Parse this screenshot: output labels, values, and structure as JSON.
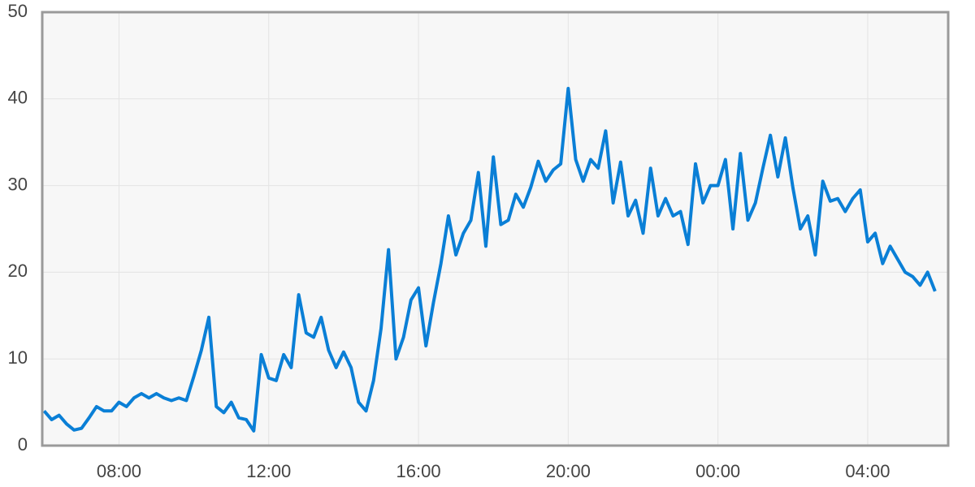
{
  "chart_data": {
    "type": "line",
    "x": [
      6.0,
      6.2,
      6.4,
      6.6,
      6.8,
      7.0,
      7.2,
      7.4,
      7.6,
      7.8,
      8.0,
      8.2,
      8.4,
      8.6,
      8.8,
      9.0,
      9.2,
      9.4,
      9.6,
      9.8,
      10.0,
      10.2,
      10.4,
      10.6,
      10.8,
      11.0,
      11.2,
      11.4,
      11.6,
      11.8,
      12.0,
      12.2,
      12.4,
      12.6,
      12.8,
      13.0,
      13.2,
      13.4,
      13.6,
      13.8,
      14.0,
      14.2,
      14.4,
      14.6,
      14.8,
      15.0,
      15.2,
      15.4,
      15.6,
      15.8,
      16.0,
      16.2,
      16.4,
      16.6,
      16.8,
      17.0,
      17.2,
      17.4,
      17.6,
      17.8,
      18.0,
      18.2,
      18.4,
      18.6,
      18.8,
      19.0,
      19.2,
      19.4,
      19.6,
      19.8,
      20.0,
      20.2,
      20.4,
      20.6,
      20.8,
      21.0,
      21.2,
      21.4,
      21.6,
      21.8,
      22.0,
      22.2,
      22.4,
      22.6,
      22.8,
      23.0,
      23.2,
      23.4,
      23.6,
      23.8,
      24.0,
      24.2,
      24.4,
      24.6,
      24.8,
      25.0,
      25.2,
      25.4,
      25.6,
      25.8,
      26.0,
      26.2,
      26.4,
      26.6,
      26.8,
      27.0,
      27.2,
      27.4,
      27.6,
      27.8,
      28.0,
      28.2,
      28.4,
      28.6,
      28.8,
      29.0,
      29.2,
      29.4,
      29.6,
      29.8
    ],
    "values": [
      4,
      3,
      3.5,
      2.5,
      1.8,
      2,
      3.2,
      4.5,
      4,
      4,
      5,
      4.5,
      5.5,
      6,
      5.5,
      6,
      5.5,
      5.2,
      5.5,
      5.2,
      8,
      11,
      14.8,
      4.5,
      3.8,
      5,
      3.2,
      3,
      1.7,
      10.5,
      7.8,
      7.5,
      10.5,
      9,
      17.4,
      13,
      12.5,
      14.8,
      11,
      9,
      10.8,
      9,
      5,
      4,
      7.5,
      13.5,
      22.6,
      10,
      12.5,
      16.8,
      18.2,
      11.5,
      16.5,
      21,
      26.5,
      22,
      24.5,
      26,
      31.5,
      23,
      33.3,
      25.5,
      26,
      29,
      27.5,
      29.8,
      32.8,
      30.5,
      31.8,
      32.5,
      41.2,
      33,
      30.5,
      33,
      32,
      36.3,
      28,
      32.7,
      26.5,
      28.3,
      24.5,
      32,
      26.5,
      28.5,
      26.5,
      27,
      23.2,
      32.5,
      28,
      30,
      30,
      33,
      25,
      33.7,
      26,
      28,
      32,
      35.8,
      31,
      35.5,
      29.8,
      25,
      26.5,
      22,
      30.5,
      28.2,
      28.5,
      27,
      28.5,
      29.5,
      23.5,
      24.5,
      21,
      23,
      21.5,
      20,
      19.5,
      18.5,
      20,
      17.8
    ],
    "color": "#0a7fd6",
    "xlim": [
      5.95,
      30.15
    ],
    "xticks": [
      {
        "value": 8,
        "label": "08:00"
      },
      {
        "value": 12,
        "label": "12:00"
      },
      {
        "value": 16,
        "label": "16:00"
      },
      {
        "value": 20,
        "label": "20:00"
      },
      {
        "value": 24,
        "label": "00:00"
      },
      {
        "value": 28,
        "label": "04:00"
      }
    ],
    "ylim": [
      0,
      50
    ],
    "yticks": [
      0,
      10,
      20,
      30,
      40,
      50
    ],
    "grid": true
  }
}
